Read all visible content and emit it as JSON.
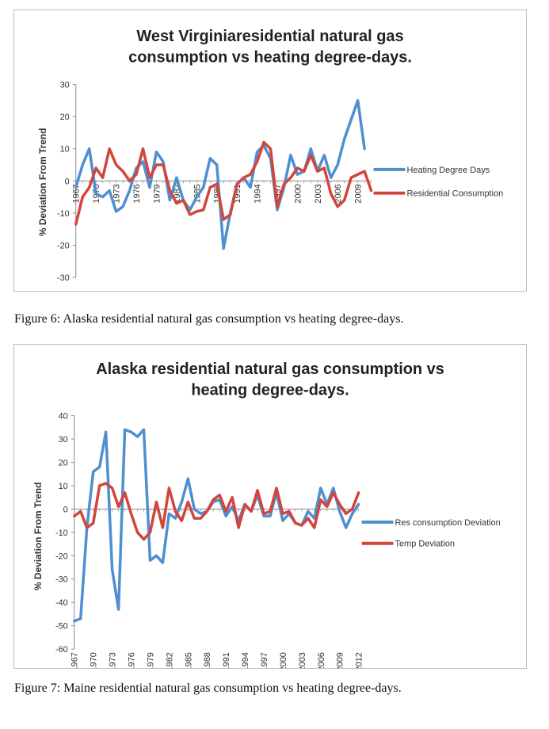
{
  "captions": {
    "figure6": "Figure 6: Alaska residential natural gas consumption vs heating degree-days.",
    "figure7": "Figure 7: Maine residential natural gas consumption vs heating degree-days."
  },
  "chart_data": [
    {
      "type": "line",
      "title_lines": [
        "West Virginiaresidential natural gas",
        "consumption vs heating degree-days."
      ],
      "ylabel": "% Deviation From Trend",
      "xlabel": "",
      "ylim": [
        -30,
        30
      ],
      "y_ticks": [
        -30,
        -20,
        -10,
        0,
        10,
        20,
        30
      ],
      "x": [
        1967,
        1968,
        1969,
        1970,
        1971,
        1972,
        1973,
        1974,
        1975,
        1976,
        1977,
        1978,
        1979,
        1980,
        1981,
        1982,
        1983,
        1984,
        1985,
        1986,
        1987,
        1988,
        1989,
        1990,
        1991,
        1992,
        1993,
        1994,
        1995,
        1996,
        1997,
        1998,
        1999,
        2000,
        2001,
        2002,
        2003,
        2004,
        2005,
        2006,
        2007,
        2008,
        2009,
        2010,
        2011
      ],
      "x_tick_labels": [
        "1967",
        "1970",
        "1973",
        "1976",
        "1979",
        "1982",
        "1985",
        "1988",
        "1991",
        "1994",
        "1997",
        "2000",
        "2003",
        "2006",
        "2009"
      ],
      "x_tick_every": 3,
      "grid": false,
      "legend_position": "right",
      "series": [
        {
          "name": "Heating Degree Days",
          "color": "#4f8fcf",
          "values": [
            -2,
            5,
            10,
            -4,
            -5,
            -3,
            -9.5,
            -8,
            -3,
            4,
            6,
            -2,
            9,
            6,
            -6,
            1,
            -6,
            -9,
            -5,
            -2,
            7,
            5,
            -21,
            -10,
            -1,
            1,
            -2,
            9,
            11,
            7,
            -9,
            -2,
            8,
            2,
            3,
            10,
            3,
            8,
            1,
            5,
            13,
            19,
            25,
            10,
            null
          ]
        },
        {
          "name": "Residential Consumption",
          "color": "#d2453d",
          "values": [
            -13.5,
            -5,
            -2,
            4,
            1,
            10,
            5,
            3,
            0,
            2,
            10,
            1,
            5,
            5,
            -3,
            -7,
            -6,
            -10.5,
            -9.5,
            -9,
            -2,
            -1,
            -12,
            -10.5,
            -1,
            1,
            2,
            6,
            12,
            10,
            -8,
            -1,
            1,
            4,
            3,
            8,
            3,
            4,
            -4,
            -8,
            -6,
            1,
            2,
            3,
            -3
          ]
        }
      ]
    },
    {
      "type": "line",
      "title_lines": [
        "Alaska residential natural gas consumption vs",
        "heating degree-days."
      ],
      "ylabel": "% Deviation From Trend",
      "xlabel": "",
      "ylim": [
        -60,
        40
      ],
      "y_ticks": [
        -60,
        -50,
        -40,
        -30,
        -20,
        -10,
        0,
        10,
        20,
        30,
        40
      ],
      "x": [
        1967,
        1968,
        1969,
        1970,
        1971,
        1972,
        1973,
        1974,
        1975,
        1976,
        1977,
        1978,
        1979,
        1980,
        1981,
        1982,
        1983,
        1984,
        1985,
        1986,
        1987,
        1988,
        1989,
        1990,
        1991,
        1992,
        1993,
        1994,
        1995,
        1996,
        1997,
        1998,
        1999,
        2000,
        2001,
        2002,
        2003,
        2004,
        2005,
        2006,
        2007,
        2008,
        2009,
        2010,
        2011,
        2012
      ],
      "x_tick_labels": [
        "1967",
        "1970",
        "1973",
        "1976",
        "1979",
        "1982",
        "1985",
        "1988",
        "1991",
        "1994",
        "1997",
        "2000",
        "2003",
        "2006",
        "2009",
        "2012"
      ],
      "x_tick_every": 3,
      "grid": false,
      "legend_position": "right",
      "series": [
        {
          "name": "Res consumption Deviation",
          "color": "#4f8fcf",
          "values": [
            -48,
            -47,
            -8,
            16,
            18,
            33,
            -26,
            -43,
            34,
            33,
            31,
            34,
            -22,
            -20,
            -23,
            -2,
            -4,
            3,
            13,
            0,
            -2,
            -1,
            3,
            4,
            -3,
            1,
            -5,
            2,
            -1,
            6,
            -3,
            -3,
            7,
            -5,
            -2,
            -6,
            -7,
            -1,
            -4,
            9,
            2,
            9,
            -1,
            -8,
            -2,
            2
          ]
        },
        {
          "name": "Temp Deviation",
          "color": "#d2453d",
          "values": [
            -3,
            -1,
            -8,
            -6,
            10,
            11,
            9,
            1,
            7,
            -2,
            -10,
            -13,
            -10,
            3,
            -8,
            9,
            -1,
            -5,
            3,
            -4,
            -4,
            -1,
            4,
            6,
            -1,
            5,
            -8,
            2,
            -1,
            8,
            -2,
            -1,
            9,
            -2,
            -1,
            -6,
            -7,
            -4,
            -8,
            4,
            1,
            7,
            2,
            -2,
            0,
            7
          ]
        }
      ]
    }
  ]
}
